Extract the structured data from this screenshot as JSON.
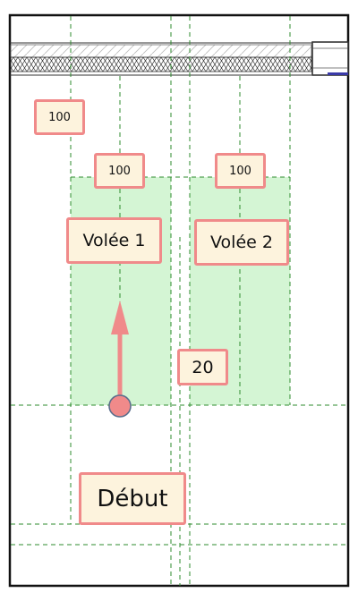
{
  "colors": {
    "frame": "#111111",
    "grid_line": "#2e8b2e",
    "flight_fill": "#c9f2c9",
    "label_border": "#f08a8a",
    "label_bg": "#fdf3dd",
    "arrow": "#f08a8a",
    "start_dot_fill": "#f08a8a",
    "start_dot_stroke": "#5a6e8c",
    "accent": "#3a3aa8"
  },
  "labels": {
    "dim_top_left": "100",
    "dim_flight1": "100",
    "dim_flight2": "100",
    "flight1": "Volée 1",
    "flight2": "Volée 2",
    "gap": "20",
    "start": "Début"
  }
}
